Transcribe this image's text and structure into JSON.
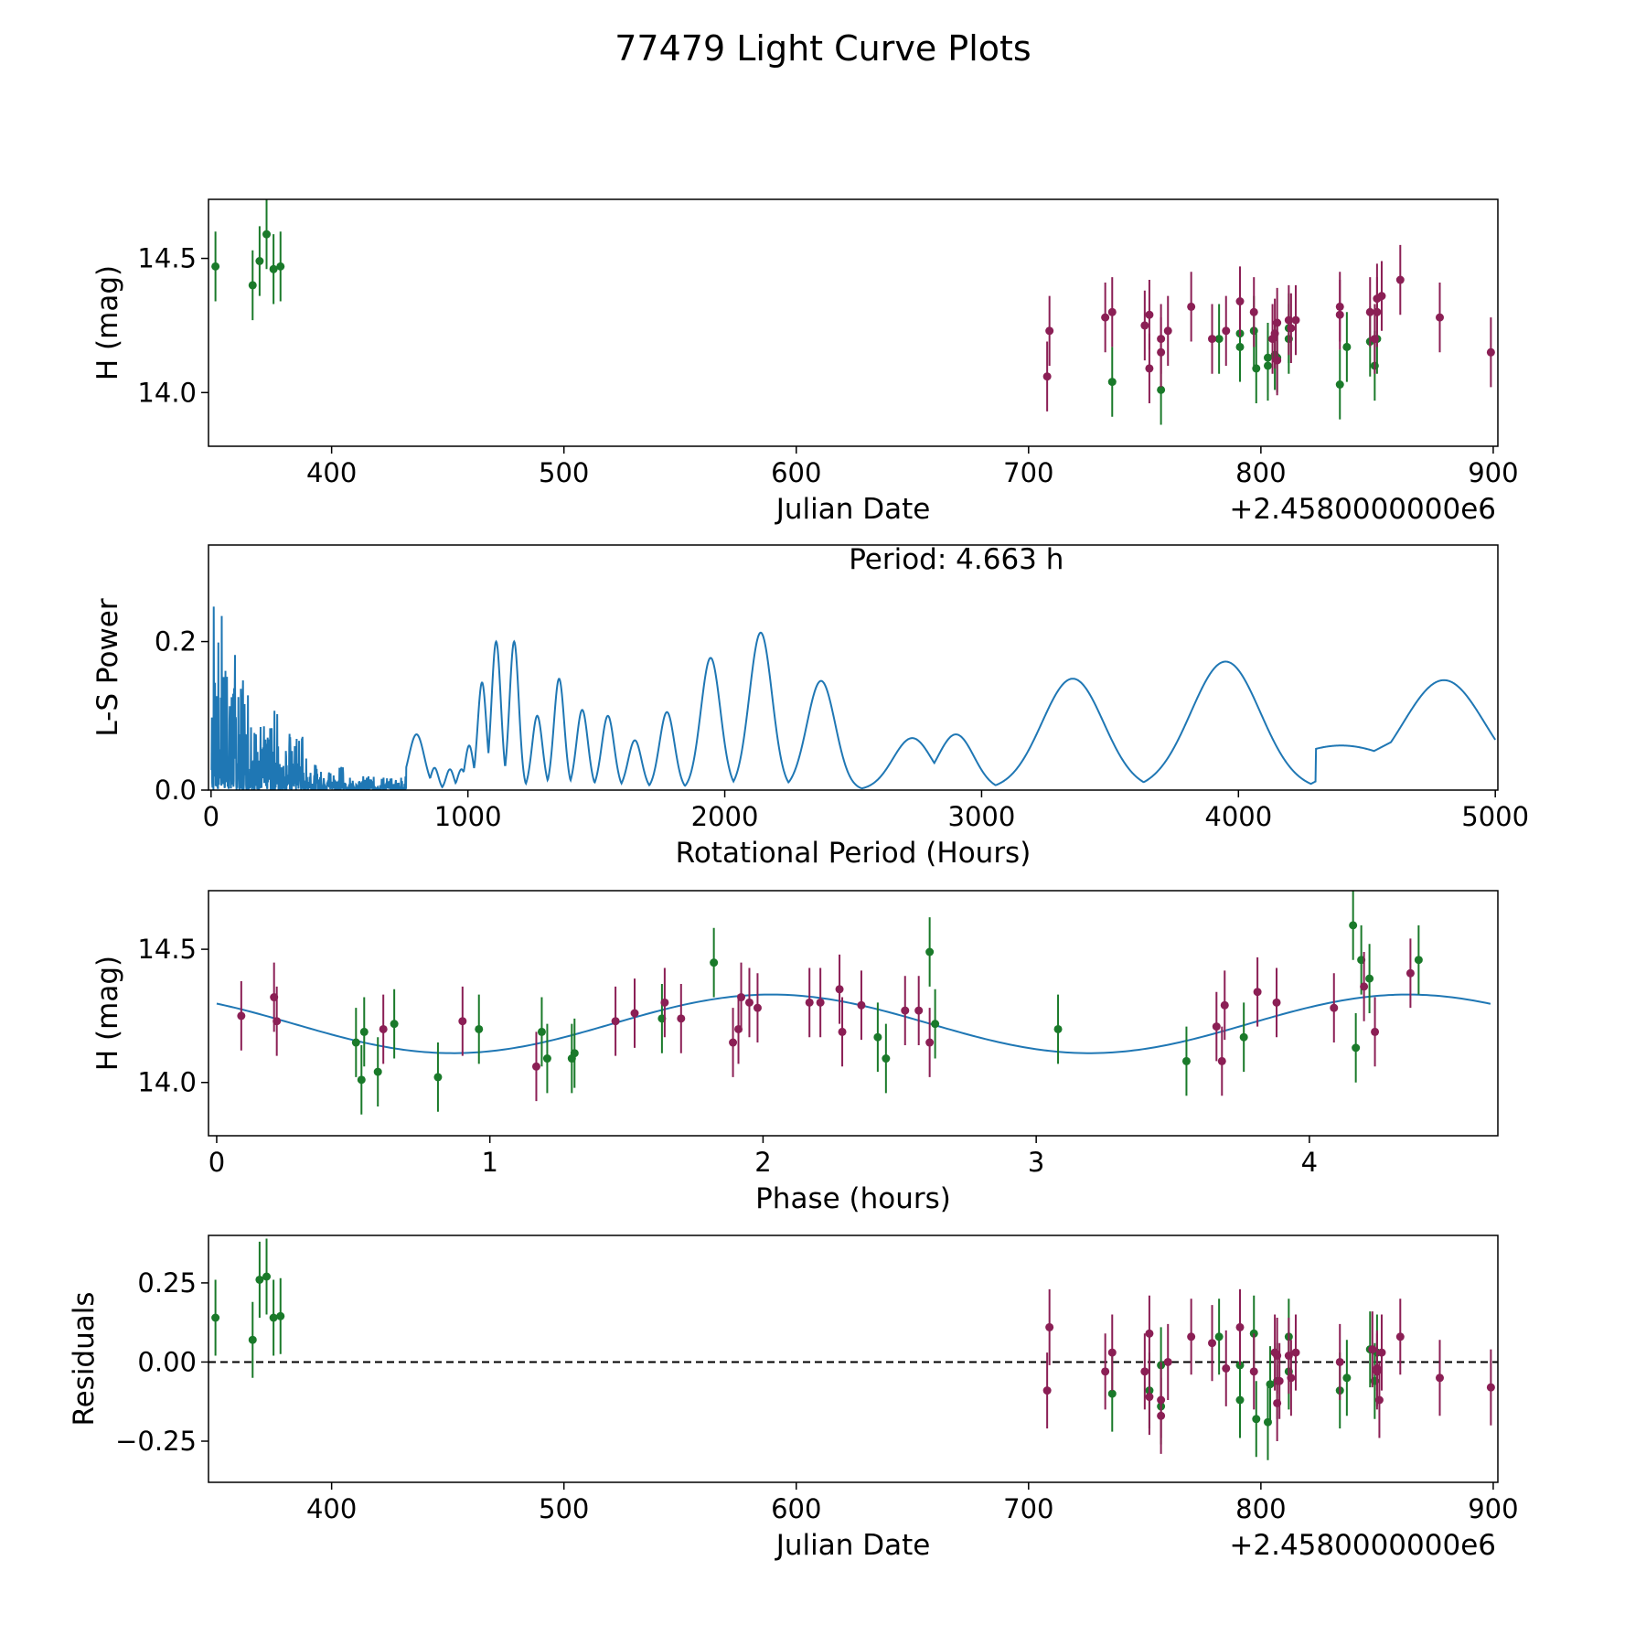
{
  "title": "77479 Light Curve Plots",
  "colors": {
    "green": "#1a7a2a",
    "purple": "#8b1f55",
    "fit": "#1f77b4",
    "axis": "#000000"
  },
  "chart_data": [
    {
      "id": "lightcurve",
      "type": "scatter",
      "xlabel": "Julian Date",
      "ylabel": "H (mag)",
      "offset_label": "+2.4580000000e6",
      "xlim": [
        347,
        902
      ],
      "ylim": [
        13.8,
        14.72
      ],
      "xticks": [
        400,
        500,
        600,
        700,
        800,
        900
      ],
      "yticks": [
        14.0,
        14.5
      ],
      "ytick_labels": [
        "14.0",
        "14.5"
      ],
      "error_bar": 0.13,
      "series": [
        {
          "name": "green",
          "color": "green",
          "points": [
            [
              350,
              14.47
            ],
            [
              366,
              14.4
            ],
            [
              369,
              14.49
            ],
            [
              372,
              14.59
            ],
            [
              375,
              14.46
            ],
            [
              378,
              14.47
            ],
            [
              736,
              14.04
            ],
            [
              757,
              14.01
            ],
            [
              782,
              14.2
            ],
            [
              791,
              14.22
            ],
            [
              791,
              14.17
            ],
            [
              797,
              14.23
            ],
            [
              798,
              14.09
            ],
            [
              803,
              14.1
            ],
            [
              803,
              14.13
            ],
            [
              806,
              14.14
            ],
            [
              807,
              14.13
            ],
            [
              812,
              14.2
            ],
            [
              812,
              14.24
            ],
            [
              834,
              14.03
            ],
            [
              837,
              14.17
            ],
            [
              847,
              14.19
            ],
            [
              849,
              14.1
            ],
            [
              850,
              14.2
            ]
          ]
        },
        {
          "name": "purple",
          "color": "purple",
          "points": [
            [
              708,
              14.06
            ],
            [
              709,
              14.23
            ],
            [
              733,
              14.28
            ],
            [
              736,
              14.3
            ],
            [
              750,
              14.25
            ],
            [
              752,
              14.09
            ],
            [
              752,
              14.29
            ],
            [
              757,
              14.2
            ],
            [
              757,
              14.15
            ],
            [
              760,
              14.23
            ],
            [
              770,
              14.32
            ],
            [
              779,
              14.2
            ],
            [
              785,
              14.23
            ],
            [
              791,
              14.34
            ],
            [
              797,
              14.3
            ],
            [
              805,
              14.2
            ],
            [
              806,
              14.22
            ],
            [
              807,
              14.26
            ],
            [
              807,
              14.12
            ],
            [
              812,
              14.27
            ],
            [
              813,
              14.24
            ],
            [
              815,
              14.27
            ],
            [
              834,
              14.32
            ],
            [
              834,
              14.29
            ],
            [
              847,
              14.3
            ],
            [
              849,
              14.2
            ],
            [
              850,
              14.35
            ],
            [
              850,
              14.3
            ],
            [
              852,
              14.36
            ],
            [
              860,
              14.42
            ],
            [
              877,
              14.28
            ],
            [
              899,
              14.15
            ]
          ]
        }
      ]
    },
    {
      "id": "periodogram",
      "type": "line",
      "xlabel": "Rotational Period (Hours)",
      "ylabel": "L-S Power",
      "annotation": "Period: 4.663 h",
      "xlim": [
        -10,
        5010
      ],
      "ylim": [
        0,
        0.33
      ],
      "xticks": [
        0,
        1000,
        2000,
        3000,
        4000,
        5000
      ],
      "yticks": [
        0.0,
        0.2
      ],
      "ytick_labels": [
        "0.0",
        "0.2"
      ],
      "peaks": [
        [
          800,
          0.075,
          30
        ],
        [
          870,
          0.03,
          15
        ],
        [
          930,
          0.028,
          15
        ],
        [
          975,
          0.028,
          15
        ],
        [
          1005,
          0.06,
          16
        ],
        [
          1055,
          0.145,
          17
        ],
        [
          1110,
          0.2,
          18
        ],
        [
          1180,
          0.2,
          18
        ],
        [
          1270,
          0.1,
          20
        ],
        [
          1355,
          0.15,
          20
        ],
        [
          1445,
          0.108,
          22
        ],
        [
          1545,
          0.1,
          24
        ],
        [
          1650,
          0.067,
          26
        ],
        [
          1775,
          0.105,
          29
        ],
        [
          1945,
          0.178,
          38
        ],
        [
          2140,
          0.212,
          44
        ],
        [
          2375,
          0.147,
          55
        ],
        [
          2730,
          0.07,
          75
        ],
        [
          2900,
          0.075,
          70
        ],
        [
          3355,
          0.15,
          120
        ],
        [
          3950,
          0.173,
          135
        ],
        [
          4800,
          0.148,
          160
        ]
      ],
      "decay_center": 4400,
      "decay_amplitude": 0.06,
      "decay_width": 250
    },
    {
      "id": "phased",
      "type": "scatter",
      "xlabel": "Phase (hours)",
      "ylabel": "H (mag)",
      "xlim": [
        -0.03,
        4.69
      ],
      "ylim": [
        13.8,
        14.72
      ],
      "xticks": [
        0,
        1,
        2,
        3,
        4
      ],
      "yticks": [
        14.0,
        14.5
      ],
      "ytick_labels": [
        "14.0",
        "14.5"
      ],
      "error_bar": 0.13,
      "fit": {
        "mean": 14.22,
        "amplitude": 0.11,
        "period": 2.33,
        "phase_peak": 2.03
      },
      "series": [
        {
          "name": "green",
          "color": "green",
          "points": [
            [
              0.51,
              14.15
            ],
            [
              0.53,
              14.01
            ],
            [
              0.54,
              14.19
            ],
            [
              0.59,
              14.04
            ],
            [
              0.65,
              14.22
            ],
            [
              0.81,
              14.02
            ],
            [
              0.96,
              14.2
            ],
            [
              1.19,
              14.19
            ],
            [
              1.21,
              14.09
            ],
            [
              1.3,
              14.09
            ],
            [
              1.31,
              14.11
            ],
            [
              1.63,
              14.24
            ],
            [
              1.82,
              14.45
            ],
            [
              2.42,
              14.17
            ],
            [
              2.45,
              14.09
            ],
            [
              2.61,
              14.49
            ],
            [
              2.63,
              14.22
            ],
            [
              3.08,
              14.2
            ],
            [
              3.55,
              14.08
            ],
            [
              3.76,
              14.17
            ],
            [
              4.16,
              14.59
            ],
            [
              4.17,
              14.13
            ],
            [
              4.19,
              14.46
            ],
            [
              4.22,
              14.39
            ],
            [
              4.4,
              14.46
            ]
          ]
        },
        {
          "name": "purple",
          "color": "purple",
          "points": [
            [
              0.09,
              14.25
            ],
            [
              0.21,
              14.32
            ],
            [
              0.22,
              14.23
            ],
            [
              0.61,
              14.2
            ],
            [
              0.9,
              14.23
            ],
            [
              1.17,
              14.06
            ],
            [
              1.46,
              14.23
            ],
            [
              1.53,
              14.26
            ],
            [
              1.64,
              14.3
            ],
            [
              1.7,
              14.24
            ],
            [
              1.89,
              14.15
            ],
            [
              1.91,
              14.2
            ],
            [
              1.92,
              14.32
            ],
            [
              1.95,
              14.3
            ],
            [
              1.98,
              14.28
            ],
            [
              2.17,
              14.3
            ],
            [
              2.21,
              14.3
            ],
            [
              2.28,
              14.35
            ],
            [
              2.29,
              14.19
            ],
            [
              2.36,
              14.29
            ],
            [
              2.52,
              14.27
            ],
            [
              2.57,
              14.27
            ],
            [
              2.61,
              14.15
            ],
            [
              3.66,
              14.21
            ],
            [
              3.68,
              14.08
            ],
            [
              3.69,
              14.29
            ],
            [
              3.81,
              14.34
            ],
            [
              3.88,
              14.3
            ],
            [
              4.09,
              14.28
            ],
            [
              4.2,
              14.36
            ],
            [
              4.24,
              14.19
            ],
            [
              4.37,
              14.41
            ]
          ]
        }
      ]
    },
    {
      "id": "residuals",
      "type": "scatter",
      "xlabel": "Julian Date",
      "ylabel": "Residuals",
      "offset_label": "+2.4580000000e6",
      "xlim": [
        347,
        902
      ],
      "ylim": [
        -0.38,
        0.4
      ],
      "xticks": [
        400,
        500,
        600,
        700,
        800,
        900
      ],
      "yticks": [
        0.25,
        0.0,
        -0.25
      ],
      "ytick_labels": [
        "0.25",
        "0.00",
        "−0.25"
      ],
      "error_bar": 0.12,
      "reference_line": 0.0,
      "series": [
        {
          "name": "green",
          "color": "green",
          "points": [
            [
              350,
              0.14
            ],
            [
              366,
              0.07
            ],
            [
              369,
              0.26
            ],
            [
              372,
              0.27
            ],
            [
              375,
              0.14
            ],
            [
              378,
              0.145
            ],
            [
              736,
              -0.1
            ],
            [
              752,
              -0.09
            ],
            [
              757,
              -0.01
            ],
            [
              757,
              -0.14
            ],
            [
              782,
              0.08
            ],
            [
              791,
              -0.01
            ],
            [
              791,
              -0.12
            ],
            [
              797,
              0.09
            ],
            [
              798,
              -0.18
            ],
            [
              803,
              -0.19
            ],
            [
              804,
              -0.07
            ],
            [
              807,
              -0.06
            ],
            [
              812,
              0.08
            ],
            [
              812,
              -0.03
            ],
            [
              834,
              -0.09
            ],
            [
              837,
              -0.05
            ],
            [
              847,
              0.04
            ],
            [
              849,
              -0.06
            ],
            [
              850,
              0.03
            ]
          ]
        },
        {
          "name": "purple",
          "color": "purple",
          "points": [
            [
              708,
              -0.09
            ],
            [
              709,
              0.11
            ],
            [
              733,
              -0.03
            ],
            [
              736,
              0.03
            ],
            [
              750,
              -0.03
            ],
            [
              752,
              0.09
            ],
            [
              752,
              -0.11
            ],
            [
              757,
              -0.12
            ],
            [
              757,
              -0.17
            ],
            [
              760,
              0.0
            ],
            [
              770,
              0.08
            ],
            [
              779,
              0.06
            ],
            [
              785,
              -0.02
            ],
            [
              791,
              0.11
            ],
            [
              797,
              -0.03
            ],
            [
              806,
              0.03
            ],
            [
              807,
              0.02
            ],
            [
              807,
              -0.13
            ],
            [
              808,
              -0.06
            ],
            [
              812,
              0.02
            ],
            [
              813,
              -0.05
            ],
            [
              815,
              0.03
            ],
            [
              834,
              0.0
            ],
            [
              848,
              0.04
            ],
            [
              850,
              -0.03
            ],
            [
              850,
              -0.02
            ],
            [
              851,
              -0.12
            ],
            [
              852,
              0.03
            ],
            [
              860,
              0.08
            ],
            [
              877,
              -0.05
            ],
            [
              899,
              -0.08
            ]
          ]
        }
      ]
    }
  ]
}
